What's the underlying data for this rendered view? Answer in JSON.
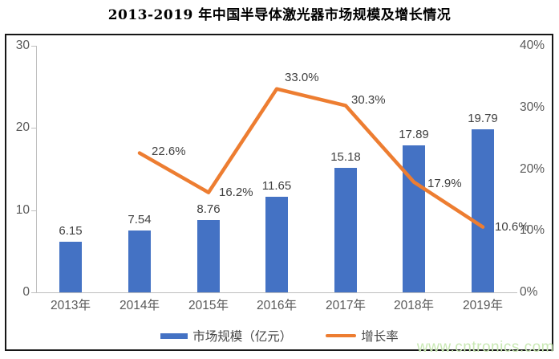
{
  "title": "2013-2019 年中国半导体激光器市场规模及增长情况",
  "watermark": {
    "text": "www.cntronics.com",
    "color": "#c9e8b4"
  },
  "colors": {
    "bar": "#4472C4",
    "line": "#ED7D31",
    "axis": "#bfbfbf",
    "label": "#404040",
    "tick_text": "#595959"
  },
  "chart_data": {
    "type": "bar",
    "subtype": "bar+line combo, dual axis",
    "title": "2013-2019 年中国半导体激光器市场规模及增长情况",
    "categories": [
      "2013年",
      "2014年",
      "2015年",
      "2016年",
      "2017年",
      "2018年",
      "2019年"
    ],
    "series": [
      {
        "name": "市场规模（亿元）",
        "type": "bar",
        "axis": "left",
        "color": "#4472C4",
        "values": [
          6.15,
          7.54,
          8.76,
          11.65,
          15.18,
          17.89,
          19.79
        ],
        "labels": [
          "6.15",
          "7.54",
          "8.76",
          "11.65",
          "15.18",
          "17.89",
          "19.79"
        ]
      },
      {
        "name": "增长率",
        "type": "line",
        "axis": "right",
        "color": "#ED7D31",
        "values": [
          null,
          22.6,
          16.2,
          33.0,
          30.3,
          17.9,
          10.6
        ],
        "labels": [
          null,
          "22.6%",
          "16.2%",
          "33.0%",
          "30.3%",
          "17.9%",
          "10.6%"
        ]
      }
    ],
    "left_axis": {
      "min": 0,
      "max": 30,
      "ticks": [
        "0",
        "10",
        "20",
        "30"
      ]
    },
    "right_axis": {
      "min": 0,
      "max": 40,
      "ticks": [
        "0%",
        "10%",
        "20%",
        "30%",
        "40%"
      ]
    },
    "grid": false,
    "legend_position": "bottom"
  }
}
